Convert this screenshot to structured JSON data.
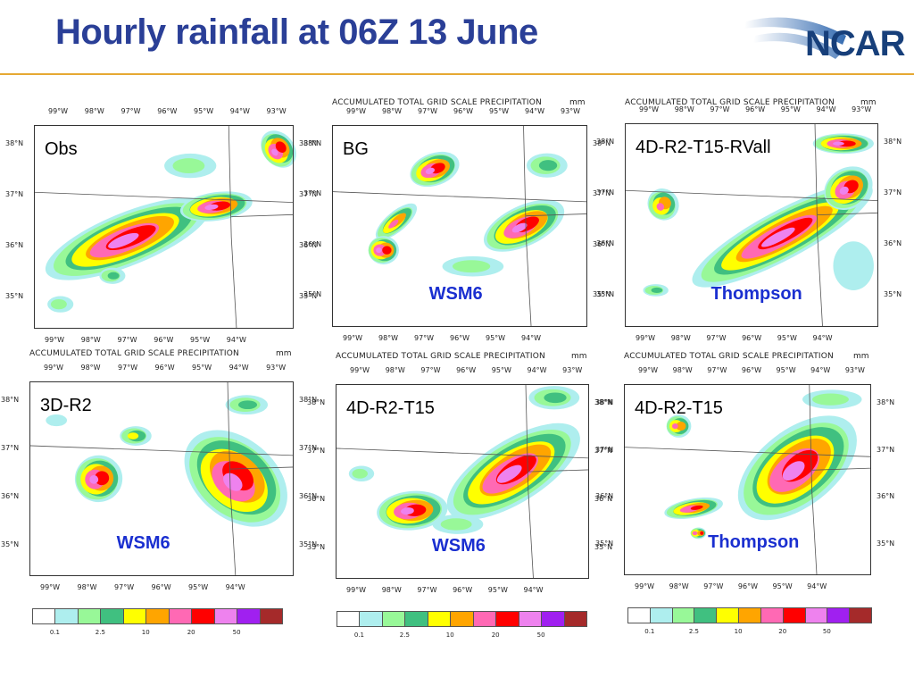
{
  "title": "Hourly rainfall at 06Z 13 June",
  "logo_text": "NCAR",
  "header_text": "ACCUMULATED TOTAL GRID SCALE PRECIPITATION",
  "header_unit": "mm",
  "lon_ticks": [
    "99°W",
    "98°W",
    "97°W",
    "96°W",
    "95°W",
    "94°W",
    "93°W"
  ],
  "lat_ticks": [
    "38°N",
    "37°N",
    "36°N",
    "35°N"
  ],
  "colors": [
    "#ffffff",
    "#aeeeee",
    "#98f898",
    "#40c080",
    "#ffff00",
    "#ffa500",
    "#ff69b4",
    "#ff0000",
    "#ee82ee",
    "#a020f0",
    "#a52a2a"
  ],
  "colorbar_levels": [
    "0.1",
    "2.5",
    "10",
    "20",
    "50"
  ],
  "panels": [
    {
      "label": "Obs",
      "scheme": "",
      "header": false
    },
    {
      "label": "BG",
      "scheme": "WSM6",
      "header": true
    },
    {
      "label": "4D-R2-T15-RVall",
      "scheme": "Thompson",
      "header": true
    },
    {
      "label": "3D-R2",
      "scheme": "WSM6",
      "header": true
    },
    {
      "label": "4D-R2-T15",
      "scheme": "WSM6",
      "header": true
    },
    {
      "label": "4D-R2-T15",
      "scheme": "Thompson",
      "header": true
    }
  ]
}
